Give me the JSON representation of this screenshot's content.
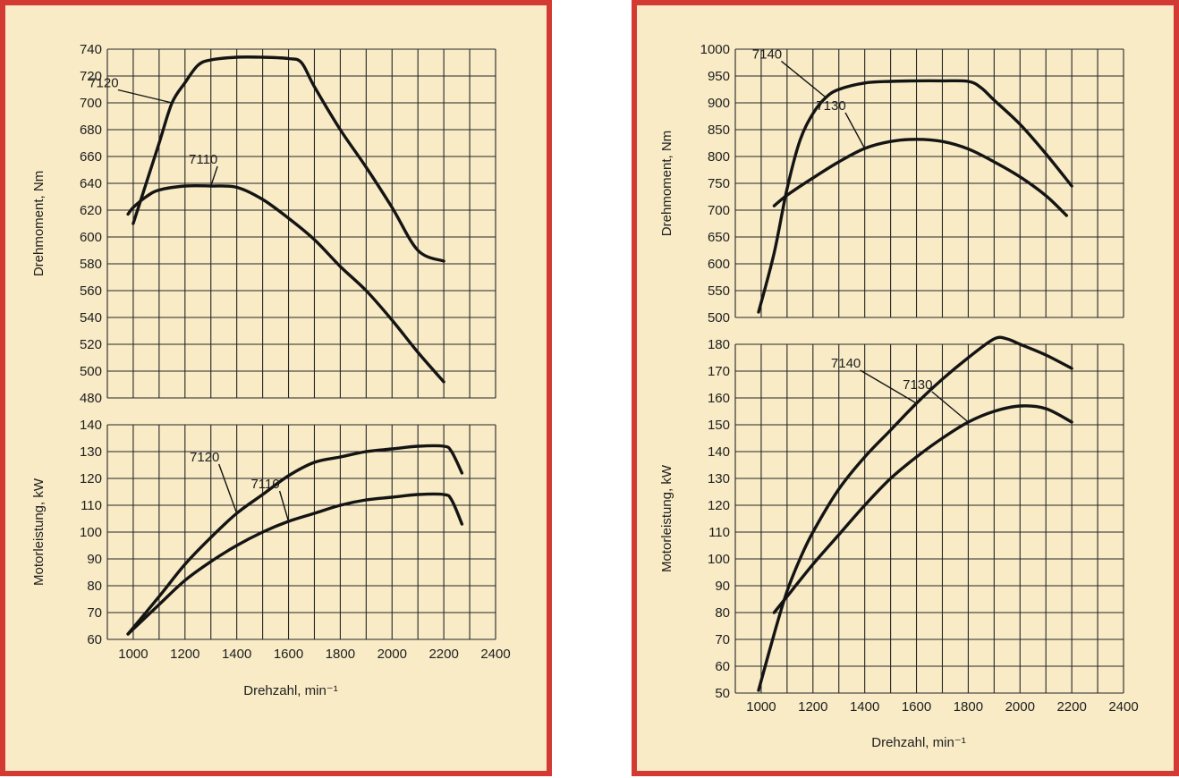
{
  "chart_data": [
    {
      "id": "left-torque",
      "type": "line",
      "title": "",
      "xlabel": "",
      "ylabel": "Drehmoment, Nm",
      "xlim": [
        900,
        2400
      ],
      "ylim": [
        480,
        740
      ],
      "yticks": [
        480,
        500,
        520,
        540,
        560,
        580,
        600,
        620,
        640,
        660,
        680,
        700,
        720,
        740
      ],
      "grid": true,
      "series": [
        {
          "name": "7120",
          "points": [
            [
              1000,
              610
            ],
            [
              1050,
              640
            ],
            [
              1100,
              670
            ],
            [
              1150,
              700
            ],
            [
              1200,
              715
            ],
            [
              1250,
              728
            ],
            [
              1300,
              732
            ],
            [
              1400,
              734
            ],
            [
              1500,
              734
            ],
            [
              1600,
              733
            ],
            [
              1650,
              730
            ],
            [
              1700,
              712
            ],
            [
              1800,
              680
            ],
            [
              1900,
              652
            ],
            [
              2000,
              622
            ],
            [
              2100,
              590
            ],
            [
              2200,
              582
            ]
          ]
        },
        {
          "name": "7110",
          "points": [
            [
              980,
              617
            ],
            [
              1000,
              622
            ],
            [
              1050,
              630
            ],
            [
              1100,
              635
            ],
            [
              1200,
              638
            ],
            [
              1300,
              638
            ],
            [
              1400,
              637
            ],
            [
              1500,
              628
            ],
            [
              1600,
              614
            ],
            [
              1700,
              598
            ],
            [
              1800,
              578
            ],
            [
              1900,
              560
            ],
            [
              2000,
              538
            ],
            [
              2100,
              514
            ],
            [
              2200,
              492
            ]
          ]
        }
      ],
      "annotations": [
        {
          "text": "7120",
          "at": [
            1100,
            709
          ]
        },
        {
          "text": "7110",
          "at": [
            1450,
            652
          ]
        }
      ]
    },
    {
      "id": "left-power",
      "type": "line",
      "title": "",
      "xlabel": "Drehzahl, min⁻¹",
      "ylabel": "Motorleistung, kW",
      "xlim": [
        900,
        2400
      ],
      "ylim": [
        60,
        140
      ],
      "xticks": [
        1000,
        1200,
        1400,
        1600,
        1800,
        2000,
        2200,
        2400
      ],
      "yticks": [
        60,
        70,
        80,
        90,
        100,
        110,
        120,
        130,
        140
      ],
      "grid": true,
      "series": [
        {
          "name": "7120",
          "points": [
            [
              980,
              62
            ],
            [
              1100,
              76
            ],
            [
              1200,
              88
            ],
            [
              1300,
              98
            ],
            [
              1400,
              107
            ],
            [
              1500,
              114
            ],
            [
              1600,
              121
            ],
            [
              1700,
              126
            ],
            [
              1800,
              128
            ],
            [
              1900,
              130
            ],
            [
              2000,
              131
            ],
            [
              2100,
              132
            ],
            [
              2200,
              132
            ],
            [
              2230,
              130
            ],
            [
              2270,
              122
            ]
          ]
        },
        {
          "name": "7110",
          "points": [
            [
              980,
              62
            ],
            [
              1100,
              73
            ],
            [
              1200,
              82
            ],
            [
              1300,
              89
            ],
            [
              1400,
              95
            ],
            [
              1500,
              100
            ],
            [
              1600,
              104
            ],
            [
              1700,
              107
            ],
            [
              1800,
              110
            ],
            [
              1900,
              112
            ],
            [
              2000,
              113
            ],
            [
              2100,
              114
            ],
            [
              2200,
              114
            ],
            [
              2230,
              112
            ],
            [
              2270,
              103
            ]
          ]
        }
      ],
      "annotations": [
        {
          "text": "7120",
          "at": [
            1490,
            125
          ]
        },
        {
          "text": "7110",
          "at": [
            1690,
            115
          ]
        }
      ]
    },
    {
      "id": "right-torque",
      "type": "line",
      "title": "",
      "xlabel": "",
      "ylabel": "Drehmoment, Nm",
      "xlim": [
        900,
        2400
      ],
      "ylim": [
        500,
        1000
      ],
      "yticks": [
        500,
        550,
        600,
        650,
        700,
        750,
        800,
        850,
        900,
        950,
        1000
      ],
      "grid": true,
      "series": [
        {
          "name": "7140",
          "points": [
            [
              990,
              510
            ],
            [
              1050,
              620
            ],
            [
              1100,
              740
            ],
            [
              1150,
              830
            ],
            [
              1200,
              880
            ],
            [
              1250,
              910
            ],
            [
              1300,
              925
            ],
            [
              1400,
              937
            ],
            [
              1500,
              940
            ],
            [
              1600,
              941
            ],
            [
              1700,
              941
            ],
            [
              1800,
              940
            ],
            [
              1850,
              928
            ],
            [
              1900,
              905
            ],
            [
              2000,
              860
            ],
            [
              2100,
              805
            ],
            [
              2200,
              745
            ]
          ]
        },
        {
          "name": "7130",
          "points": [
            [
              1050,
              708
            ],
            [
              1100,
              728
            ],
            [
              1200,
              760
            ],
            [
              1300,
              790
            ],
            [
              1400,
              815
            ],
            [
              1500,
              828
            ],
            [
              1600,
              832
            ],
            [
              1700,
              828
            ],
            [
              1800,
              814
            ],
            [
              1900,
              790
            ],
            [
              2000,
              762
            ],
            [
              2100,
              727
            ],
            [
              2180,
              690
            ]
          ]
        }
      ],
      "annotations": [
        {
          "text": "7140",
          "at": [
            1230,
            976
          ]
        },
        {
          "text": "7130",
          "at": [
            1460,
            880
          ]
        }
      ]
    },
    {
      "id": "right-power",
      "type": "line",
      "title": "",
      "xlabel": "Drehzahl, min⁻¹",
      "ylabel": "Motorleistung, kW",
      "xlim": [
        900,
        2400
      ],
      "ylim": [
        50,
        180
      ],
      "xticks": [
        1000,
        1200,
        1400,
        1600,
        1800,
        2000,
        2200,
        2400
      ],
      "yticks": [
        50,
        60,
        70,
        80,
        90,
        100,
        110,
        120,
        130,
        140,
        150,
        160,
        170,
        180
      ],
      "grid": true,
      "series": [
        {
          "name": "7140",
          "points": [
            [
              990,
              51
            ],
            [
              1050,
              72
            ],
            [
              1100,
              88
            ],
            [
              1150,
              100
            ],
            [
              1200,
              110
            ],
            [
              1300,
              126
            ],
            [
              1400,
              138
            ],
            [
              1500,
              148
            ],
            [
              1600,
              158
            ],
            [
              1700,
              167
            ],
            [
              1800,
              175
            ],
            [
              1900,
              182
            ],
            [
              1950,
              182
            ],
            [
              2000,
              180
            ],
            [
              2100,
              176
            ],
            [
              2200,
              171
            ]
          ]
        },
        {
          "name": "7130",
          "points": [
            [
              1050,
              80
            ],
            [
              1100,
              86
            ],
            [
              1200,
              98
            ],
            [
              1300,
              109
            ],
            [
              1400,
              120
            ],
            [
              1500,
              130
            ],
            [
              1600,
              138
            ],
            [
              1700,
              145
            ],
            [
              1800,
              151
            ],
            [
              1900,
              155
            ],
            [
              2000,
              157
            ],
            [
              2100,
              156
            ],
            [
              2200,
              151
            ]
          ]
        }
      ],
      "annotations": [
        {
          "text": "7140",
          "at": [
            1500,
            170
          ]
        },
        {
          "text": "7130",
          "at": [
            1760,
            162
          ]
        }
      ]
    }
  ]
}
